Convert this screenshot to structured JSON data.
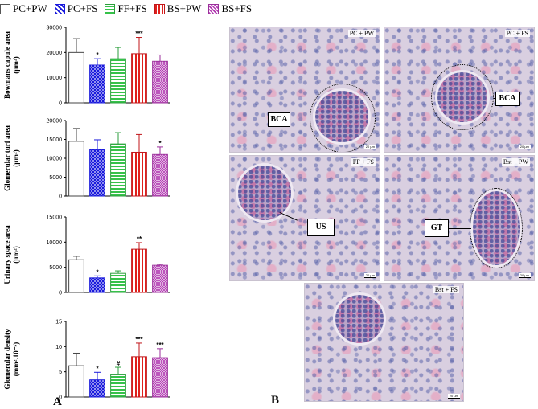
{
  "legend": [
    {
      "label": "PC+PW",
      "swatch": "sw-white"
    },
    {
      "label": "PC+FS",
      "swatch": "sw-blue"
    },
    {
      "label": "FF+FS",
      "swatch": "sw-green"
    },
    {
      "label": "BS+PW",
      "swatch": "sw-red"
    },
    {
      "label": "BS+FS",
      "swatch": "sw-purple"
    }
  ],
  "group_colors": [
    "#ffffff",
    "#1a1adc",
    "#36c24a",
    "#e0201c",
    "#b23bb2"
  ],
  "group_strokes": [
    "#444444",
    "#1a1adc",
    "#2b9e3c",
    "#c0161a",
    "#9b2f9b"
  ],
  "panel_a_letter": "A",
  "panel_b_letter": "B",
  "chart_data": [
    {
      "type": "bar",
      "title": "",
      "ylabel_lines": [
        "Bowmans capule area",
        "(µm²)"
      ],
      "categories": [
        "PC+PW",
        "PC+FS",
        "FF+FS",
        "BS+PW",
        "BS+FS"
      ],
      "values": [
        20000,
        15000,
        17500,
        19500,
        16500
      ],
      "errors": [
        5500,
        2500,
        4500,
        6500,
        2500
      ],
      "significance": [
        "",
        "*",
        "",
        "***",
        ""
      ],
      "ylim": [
        0,
        30000
      ],
      "yticks": [
        0,
        10000,
        20000,
        30000
      ],
      "ytick_labels": [
        "0",
        "10000",
        "20000",
        "30000"
      ]
    },
    {
      "type": "bar",
      "title": "",
      "ylabel_lines": [
        "Glomerular turf area",
        "(µm²)"
      ],
      "categories": [
        "PC+PW",
        "PC+FS",
        "FF+FS",
        "BS+PW",
        "BS+FS"
      ],
      "values": [
        14500,
        12300,
        13800,
        11600,
        11000
      ],
      "errors": [
        3400,
        2600,
        3000,
        4700,
        2000
      ],
      "significance": [
        "",
        "",
        "",
        "",
        "*"
      ],
      "ylim": [
        0,
        20000
      ],
      "yticks": [
        0,
        5000,
        10000,
        15000,
        20000
      ],
      "ytick_labels": [
        "0",
        "5000",
        "10000",
        "15000",
        "20000"
      ]
    },
    {
      "type": "bar",
      "title": "",
      "ylabel_lines": [
        "Urinary space area",
        "(µm²)"
      ],
      "categories": [
        "PC+PW",
        "PC+FS",
        "FF+FS",
        "BS+PW",
        "BS+FS"
      ],
      "values": [
        6500,
        2900,
        3800,
        8600,
        5400
      ],
      "errors": [
        700,
        400,
        500,
        1300,
        200
      ],
      "significance": [
        "",
        "*",
        "",
        "**",
        ""
      ],
      "ylim": [
        0,
        15000
      ],
      "yticks": [
        0,
        5000,
        10000,
        15000
      ],
      "ytick_labels": [
        "0",
        "5000",
        "10000",
        "15000"
      ]
    },
    {
      "type": "bar",
      "title": "",
      "ylabel_lines": [
        "Glomerular density",
        "(mm².10⁻⁵)"
      ],
      "categories": [
        "PC+PW",
        "PC+FS",
        "FF+FS",
        "BS+PW",
        "BS+FS"
      ],
      "values": [
        6.2,
        3.4,
        4.4,
        8.0,
        7.8
      ],
      "errors": [
        2.5,
        1.5,
        1.5,
        2.7,
        1.8
      ],
      "significance": [
        "",
        "*",
        "#",
        "***",
        "***"
      ],
      "ylim": [
        0,
        15
      ],
      "yticks": [
        0,
        5,
        10,
        15
      ],
      "ytick_labels": [
        "0",
        "5",
        "10",
        "15"
      ]
    }
  ],
  "micrographs": [
    {
      "label": "PC + PW",
      "callout": "BCA",
      "scale": "20 µm"
    },
    {
      "label": "PC + FS",
      "callout": "BCA",
      "scale": "20 µm"
    },
    {
      "label": "FF + FS",
      "callout": "US",
      "scale": "20 µm"
    },
    {
      "label": "Bst + PW",
      "callout": "GT",
      "scale": "20 µm"
    },
    {
      "label": "Bst + FS",
      "callout": "",
      "scale": "20 µm"
    }
  ]
}
